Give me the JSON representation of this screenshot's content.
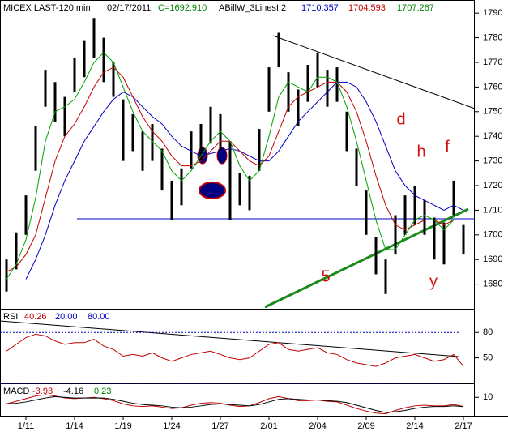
{
  "chart_data": [
    {
      "type": "ohlc",
      "header": [
        "MICEX LAST-120 min",
        "02/17/2011",
        "C=1692.910",
        "ABillW_3LinesII2",
        "1710.357",
        "1704.593",
        "1707.267"
      ],
      "header_colors": [
        "#000000",
        "#000000",
        "#008000",
        "#000000",
        "#0000c0",
        "#c00000",
        "#008000"
      ],
      "categories": [
        null,
        null,
        "1/11",
        null,
        null,
        null,
        null,
        "1/14",
        null,
        null,
        null,
        null,
        "1/19",
        null,
        null,
        null,
        null,
        "1/24",
        null,
        null,
        null,
        null,
        "1/27",
        null,
        null,
        null,
        null,
        "2/01",
        null,
        null,
        null,
        null,
        "2/04",
        null,
        null,
        null,
        null,
        "2/09",
        null,
        null,
        null,
        null,
        "2/14",
        null,
        null,
        null,
        null,
        "2/17"
      ],
      "high": [
        1690,
        1701,
        1716,
        1744,
        1767,
        1762,
        1756,
        1772,
        1779,
        1788,
        1780,
        1770,
        1755,
        1749,
        1742,
        1745,
        1735,
        1722,
        1727,
        1742,
        1745,
        1752,
        1749,
        1738,
        1725,
        1724,
        1743,
        1768,
        1782,
        1766,
        1759,
        1769,
        1774,
        1767,
        1768,
        1750,
        1735,
        1718,
        1699,
        1690,
        1708,
        1716,
        1720,
        1714,
        1707,
        1705,
        1722,
        1704
      ],
      "low": [
        1677,
        1686,
        1700,
        1726,
        1752,
        1746,
        1740,
        1758,
        1764,
        1772,
        1762,
        1756,
        1730,
        1734,
        1726,
        1730,
        1718,
        1706,
        1712,
        1727,
        1730,
        1737,
        1734,
        1706,
        1712,
        1710,
        1726,
        1750,
        1768,
        1750,
        1744,
        1754,
        1760,
        1752,
        1754,
        1734,
        1720,
        1700,
        1684,
        1676,
        1692,
        1700,
        1704,
        1700,
        1690,
        1688,
        1708,
        1692
      ],
      "color": "#000000",
      "series": [
        {
          "name": "blue",
          "color": "#0000c0",
          "values": [
            null,
            null,
            1682,
            1690,
            1700,
            1712,
            1722,
            1730,
            1738,
            1744,
            1750,
            1755,
            1758,
            1756,
            1752,
            1748,
            1745,
            1740,
            1736,
            1734,
            1732,
            1733,
            1734,
            1735,
            1734,
            1732,
            1730,
            1730,
            1734,
            1740,
            1746,
            1750,
            1754,
            1758,
            1762,
            1762,
            1760,
            1754,
            1746,
            1736,
            1726,
            1720,
            1716,
            1714,
            1712,
            1710,
            1712,
            1710
          ]
        },
        {
          "name": "red",
          "color": "#c00000",
          "values": [
            1685,
            1687,
            1692,
            1700,
            1715,
            1730,
            1740,
            1745,
            1752,
            1760,
            1766,
            1768,
            1764,
            1756,
            1748,
            1742,
            1738,
            1732,
            1728,
            1728,
            1730,
            1734,
            1738,
            1738,
            1734,
            1730,
            1728,
            1732,
            1742,
            1752,
            1756,
            1758,
            1760,
            1762,
            1762,
            1758,
            1750,
            1738,
            1724,
            1712,
            1704,
            1702,
            1704,
            1706,
            1706,
            1704,
            1706,
            1706
          ]
        },
        {
          "name": "green",
          "color": "#00a000",
          "values": [
            1682,
            1688,
            1698,
            1715,
            1738,
            1750,
            1752,
            1755,
            1762,
            1770,
            1774,
            1770,
            1760,
            1750,
            1742,
            1738,
            1734,
            1726,
            1722,
            1726,
            1732,
            1738,
            1742,
            1738,
            1728,
            1722,
            1726,
            1740,
            1756,
            1762,
            1760,
            1758,
            1764,
            1764,
            1762,
            1752,
            1738,
            1722,
            1706,
            1694,
            1694,
            1700,
            1706,
            1708,
            1706,
            1702,
            1706,
            1706
          ]
        }
      ],
      "annotations": [
        "d",
        "h",
        "f",
        "5",
        "y"
      ],
      "ylim": [
        1670,
        1795
      ],
      "yticks": [
        1680,
        1690,
        1700,
        1710,
        1720,
        1730,
        1740,
        1750,
        1760,
        1770,
        1780,
        1790
      ]
    },
    {
      "type": "line",
      "header": [
        "RSI",
        "40.26",
        "20.00",
        "80.00"
      ],
      "header_colors": [
        "#000000",
        "#c00000",
        "#0000c0",
        "#0000c0"
      ],
      "series": [
        {
          "name": "RSI",
          "color": "#c00000",
          "values": [
            58,
            66,
            74,
            78,
            76,
            70,
            66,
            68,
            68,
            72,
            64,
            60,
            52,
            54,
            52,
            56,
            50,
            46,
            50,
            54,
            56,
            58,
            54,
            50,
            48,
            50,
            58,
            66,
            68,
            60,
            58,
            60,
            62,
            56,
            54,
            48,
            44,
            42,
            40,
            44,
            50,
            52,
            54,
            50,
            46,
            48,
            54,
            40.26
          ]
        }
      ],
      "levels": [
        20,
        80
      ],
      "ylim": [
        20,
        107
      ],
      "yticks": [
        50,
        80
      ]
    },
    {
      "type": "line",
      "header": [
        "MACD",
        "-3.93",
        "-4.16",
        "0.23"
      ],
      "header_colors": [
        "#000000",
        "#c00000",
        "#000000",
        "#008000"
      ],
      "series": [
        {
          "name": "MACD",
          "color": "#c00000",
          "values": [
            0,
            4,
            8,
            12,
            14,
            12,
            9,
            8,
            9,
            10,
            8,
            5,
            0,
            -3,
            -4,
            -3,
            -5,
            -7,
            -6,
            -2,
            1,
            2,
            1,
            -2,
            -4,
            -3,
            2,
            8,
            11,
            8,
            5,
            5,
            6,
            4,
            3,
            -2,
            -7,
            -11,
            -14,
            -15,
            -10,
            -6,
            -3,
            -2,
            -3,
            -3,
            -1,
            -3.93
          ]
        },
        {
          "name": "Signal",
          "color": "#000000",
          "values": [
            0,
            1,
            3,
            6,
            9,
            11,
            10,
            9,
            9,
            9,
            9,
            7,
            4,
            1,
            -1,
            -2,
            -3,
            -5,
            -6,
            -5,
            -3,
            -1,
            0,
            -1,
            -2,
            -3,
            -1,
            3,
            7,
            8,
            7,
            6,
            6,
            5,
            4,
            2,
            -2,
            -6,
            -10,
            -13,
            -12,
            -10,
            -7,
            -5,
            -4,
            -4,
            -3,
            -4.16
          ]
        }
      ],
      "ylim": [
        -18,
        30
      ],
      "yticks": [
        10
      ]
    }
  ]
}
